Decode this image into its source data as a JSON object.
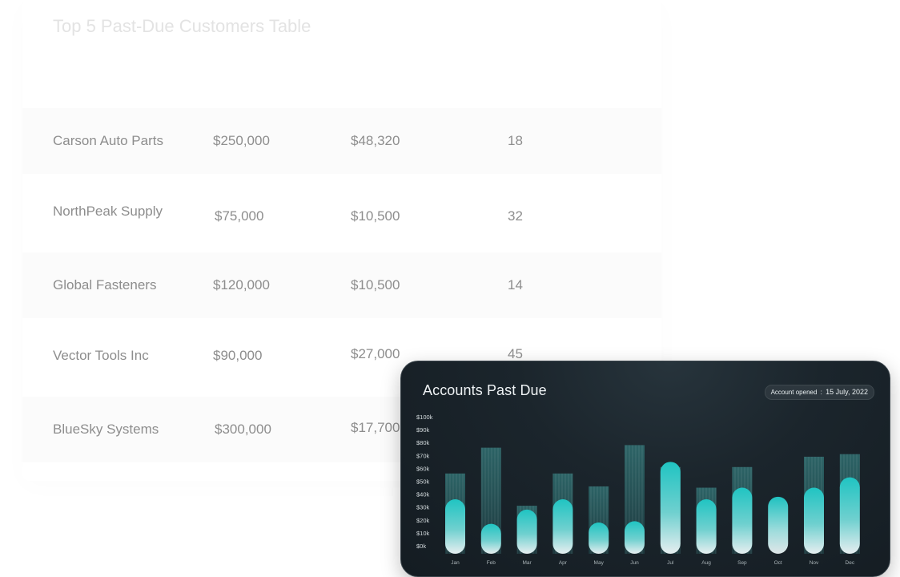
{
  "table": {
    "title": "Top 5 Past-Due Customers Table",
    "rows": [
      {
        "customer": "Carson Auto Parts",
        "credit_limit": "$250,000",
        "past_due": "$48,320",
        "days": "18"
      },
      {
        "customer": "NorthPeak Supply",
        "credit_limit": "$75,000",
        "past_due": "$10,500",
        "days": "32"
      },
      {
        "customer": "Global Fasteners",
        "credit_limit": "$120,000",
        "past_due": "$10,500",
        "days": "14"
      },
      {
        "customer": "Vector Tools Inc",
        "credit_limit": "$90,000",
        "past_due": "$27,000",
        "days": "45"
      },
      {
        "customer": "BlueSky Systems",
        "credit_limit": "$300,000",
        "past_due": "$17,700",
        "days": ""
      }
    ]
  },
  "chart_card": {
    "title": "Accounts Past Due",
    "badge_label": "Account opened",
    "badge_sep": ":",
    "badge_date": "15 July, 2022"
  },
  "chart_data": {
    "type": "bar",
    "title": "Accounts Past Due",
    "categories": [
      "Jan",
      "Feb",
      "Mar",
      "Apr",
      "May",
      "Jun",
      "Jul",
      "Aug",
      "Sep",
      "Oct",
      "Nov",
      "Dec"
    ],
    "y_ticks": [
      "$100k",
      "$90k",
      "$80k",
      "$70k",
      "$60k",
      "$50k",
      "$40k",
      "$30k",
      "$20k",
      "$10k",
      "$0k"
    ],
    "ylim": [
      0,
      100
    ],
    "series": [
      {
        "values": [
          56,
          76,
          31,
          56,
          46,
          78,
          61,
          45,
          61,
          0,
          69,
          71
        ]
      },
      {
        "values": [
          36,
          17,
          28,
          36,
          18,
          19,
          65,
          36,
          45,
          38,
          45,
          53
        ]
      }
    ],
    "colors": {
      "accent": "#20c4c2",
      "outer": "#2f6e70"
    },
    "grid": false,
    "legend": "none"
  }
}
